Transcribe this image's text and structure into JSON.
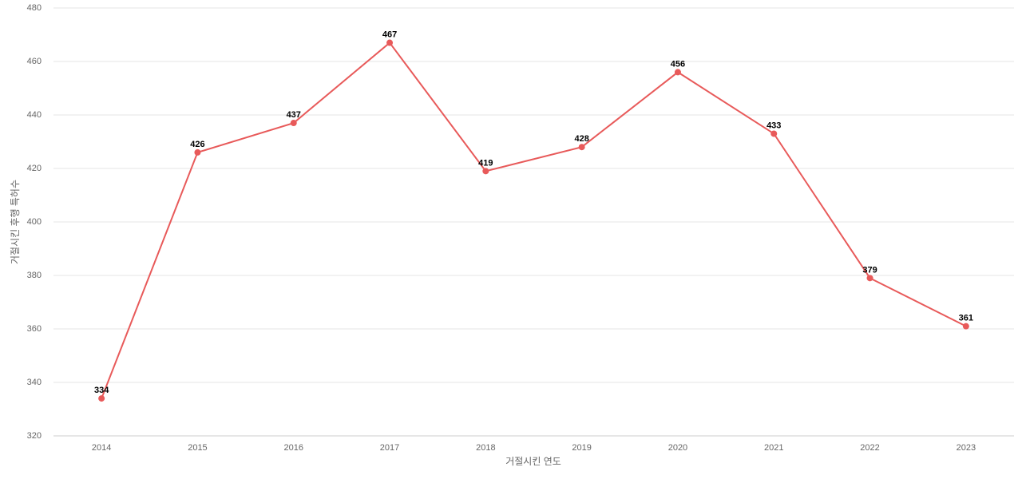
{
  "chart_data": {
    "type": "line",
    "x_label": "거절시킨 연도",
    "y_label": "거절시킨 후행 특허수",
    "categories": [
      "2014",
      "2015",
      "2016",
      "2017",
      "2018",
      "2019",
      "2020",
      "2021",
      "2022",
      "2023"
    ],
    "values": [
      334,
      426,
      437,
      467,
      419,
      428,
      456,
      433,
      379,
      361
    ],
    "color": "#e85a5a",
    "ylim": [
      320,
      480
    ],
    "yticks": [
      320,
      340,
      360,
      380,
      400,
      420,
      440,
      460,
      480
    ],
    "grid": true
  }
}
